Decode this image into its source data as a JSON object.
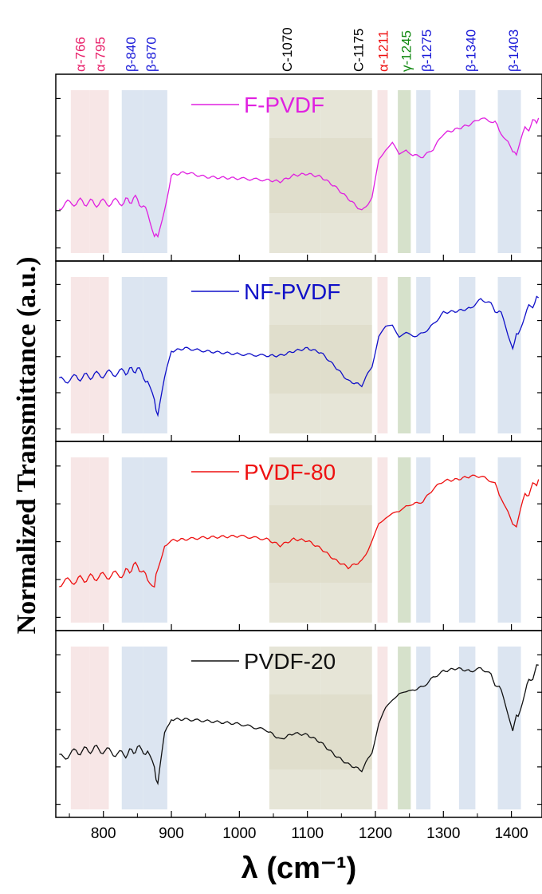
{
  "chart_data": {
    "type": "line",
    "ylabel": "Normalized Transmittance (a.u.)",
    "xlabel": "λ (cm⁻¹)",
    "xlim": [
      730,
      1445
    ],
    "x_ticks": [
      800,
      900,
      1000,
      1100,
      1200,
      1300,
      1400
    ],
    "bands": [
      {
        "label": "α-766",
        "center": 766,
        "from": 752,
        "to": 780,
        "color": "#e8206a",
        "fill": "#f6e2e2"
      },
      {
        "label": "α-795",
        "center": 795,
        "from": 780,
        "to": 808,
        "color": "#e8206a",
        "fill": "#f6e2e2"
      },
      {
        "label": "β-840",
        "center": 840,
        "from": 827,
        "to": 858,
        "color": "#1a1ad8",
        "fill": "#d6e0ee"
      },
      {
        "label": "β-870",
        "center": 870,
        "from": 858,
        "to": 894,
        "color": "#1a1ad8",
        "fill": "#d6e0ee"
      },
      {
        "label": "C-1070",
        "center": 1070,
        "from": 1044,
        "to": 1120,
        "color": "#000000",
        "fill": "#e2e0d0"
      },
      {
        "label": "C-1175",
        "center": 1175,
        "from": 1120,
        "to": 1195,
        "color": "#000000",
        "fill": "#e2e0d0"
      },
      {
        "label": "α-1211",
        "center": 1211,
        "from": 1203,
        "to": 1218,
        "color": "#ee1111",
        "fill": "#f6e2e2"
      },
      {
        "label": "γ-1245",
        "center": 1245,
        "from": 1233,
        "to": 1252,
        "color": "#118811",
        "fill": "#cfdcc2"
      },
      {
        "label": "β-1275",
        "center": 1275,
        "from": 1260,
        "to": 1281,
        "color": "#1a1ad8",
        "fill": "#d6e0ee"
      },
      {
        "label": "β-1340",
        "center": 1340,
        "from": 1323,
        "to": 1347,
        "color": "#1a1ad8",
        "fill": "#d6e0ee"
      },
      {
        "label": "β-1403",
        "center": 1403,
        "from": 1380,
        "to": 1414,
        "color": "#1a1ad8",
        "fill": "#d6e0ee"
      }
    ],
    "series": [
      {
        "name": "F-PVDF",
        "color": "#e020e0",
        "x": [
          735,
          760,
          790,
          830,
          850,
          865,
          875,
          880,
          890,
          900,
          920,
          950,
          1000,
          1040,
          1060,
          1080,
          1100,
          1120,
          1140,
          1160,
          1180,
          1195,
          1205,
          1215,
          1225,
          1235,
          1245,
          1255,
          1270,
          1285,
          1300,
          1320,
          1340,
          1355,
          1370,
          1385,
          1395,
          1402,
          1410,
          1420,
          1440
        ],
        "y": [
          0.25,
          0.28,
          0.27,
          0.28,
          0.3,
          0.2,
          0.08,
          0.04,
          0.25,
          0.45,
          0.47,
          0.44,
          0.43,
          0.42,
          0.41,
          0.45,
          0.46,
          0.44,
          0.38,
          0.3,
          0.22,
          0.3,
          0.55,
          0.62,
          0.66,
          0.58,
          0.62,
          0.58,
          0.57,
          0.62,
          0.72,
          0.75,
          0.78,
          0.82,
          0.8,
          0.74,
          0.66,
          0.58,
          0.62,
          0.74,
          0.82
        ]
      },
      {
        "name": "NF-PVDF",
        "color": "#1010c8",
        "x": [
          735,
          760,
          790,
          830,
          850,
          865,
          875,
          880,
          890,
          900,
          920,
          950,
          1000,
          1040,
          1060,
          1080,
          1100,
          1120,
          1140,
          1160,
          1180,
          1195,
          1205,
          1215,
          1225,
          1235,
          1245,
          1255,
          1270,
          1285,
          1300,
          1320,
          1340,
          1355,
          1370,
          1385,
          1395,
          1402,
          1410,
          1420,
          1440
        ],
        "y": [
          0.3,
          0.32,
          0.34,
          0.36,
          0.38,
          0.3,
          0.15,
          0.08,
          0.3,
          0.5,
          0.52,
          0.5,
          0.48,
          0.47,
          0.47,
          0.5,
          0.52,
          0.49,
          0.4,
          0.3,
          0.27,
          0.4,
          0.6,
          0.66,
          0.68,
          0.6,
          0.62,
          0.6,
          0.62,
          0.68,
          0.76,
          0.77,
          0.79,
          0.85,
          0.82,
          0.74,
          0.62,
          0.54,
          0.62,
          0.76,
          0.86
        ]
      },
      {
        "name": "PVDF-80",
        "color": "#ee1111",
        "x": [
          735,
          760,
          790,
          830,
          850,
          865,
          875,
          880,
          890,
          900,
          920,
          950,
          1000,
          1040,
          1060,
          1080,
          1100,
          1120,
          1140,
          1160,
          1180,
          1195,
          1205,
          1215,
          1225,
          1235,
          1245,
          1255,
          1270,
          1285,
          1300,
          1320,
          1340,
          1355,
          1370,
          1385,
          1395,
          1402,
          1410,
          1420,
          1440
        ],
        "y": [
          0.2,
          0.22,
          0.24,
          0.26,
          0.32,
          0.22,
          0.2,
          0.28,
          0.46,
          0.47,
          0.48,
          0.49,
          0.5,
          0.48,
          0.44,
          0.48,
          0.47,
          0.42,
          0.35,
          0.3,
          0.34,
          0.46,
          0.58,
          0.62,
          0.64,
          0.65,
          0.7,
          0.7,
          0.72,
          0.8,
          0.85,
          0.86,
          0.88,
          0.88,
          0.85,
          0.76,
          0.64,
          0.55,
          0.6,
          0.75,
          0.86
        ]
      },
      {
        "name": "PVDF-20",
        "color": "#111111",
        "x": [
          735,
          760,
          790,
          830,
          850,
          865,
          875,
          880,
          890,
          900,
          920,
          950,
          1000,
          1040,
          1060,
          1080,
          1100,
          1120,
          1140,
          1160,
          1180,
          1195,
          1205,
          1215,
          1225,
          1235,
          1245,
          1255,
          1270,
          1285,
          1300,
          1320,
          1340,
          1355,
          1370,
          1385,
          1395,
          1402,
          1410,
          1420,
          1440
        ],
        "y": [
          0.28,
          0.32,
          0.34,
          0.3,
          0.34,
          0.32,
          0.2,
          0.12,
          0.42,
          0.53,
          0.53,
          0.52,
          0.5,
          0.46,
          0.4,
          0.44,
          0.43,
          0.38,
          0.3,
          0.24,
          0.2,
          0.32,
          0.5,
          0.6,
          0.66,
          0.7,
          0.7,
          0.72,
          0.74,
          0.8,
          0.84,
          0.86,
          0.84,
          0.86,
          0.82,
          0.7,
          0.58,
          0.48,
          0.56,
          0.72,
          0.88
        ]
      }
    ]
  }
}
